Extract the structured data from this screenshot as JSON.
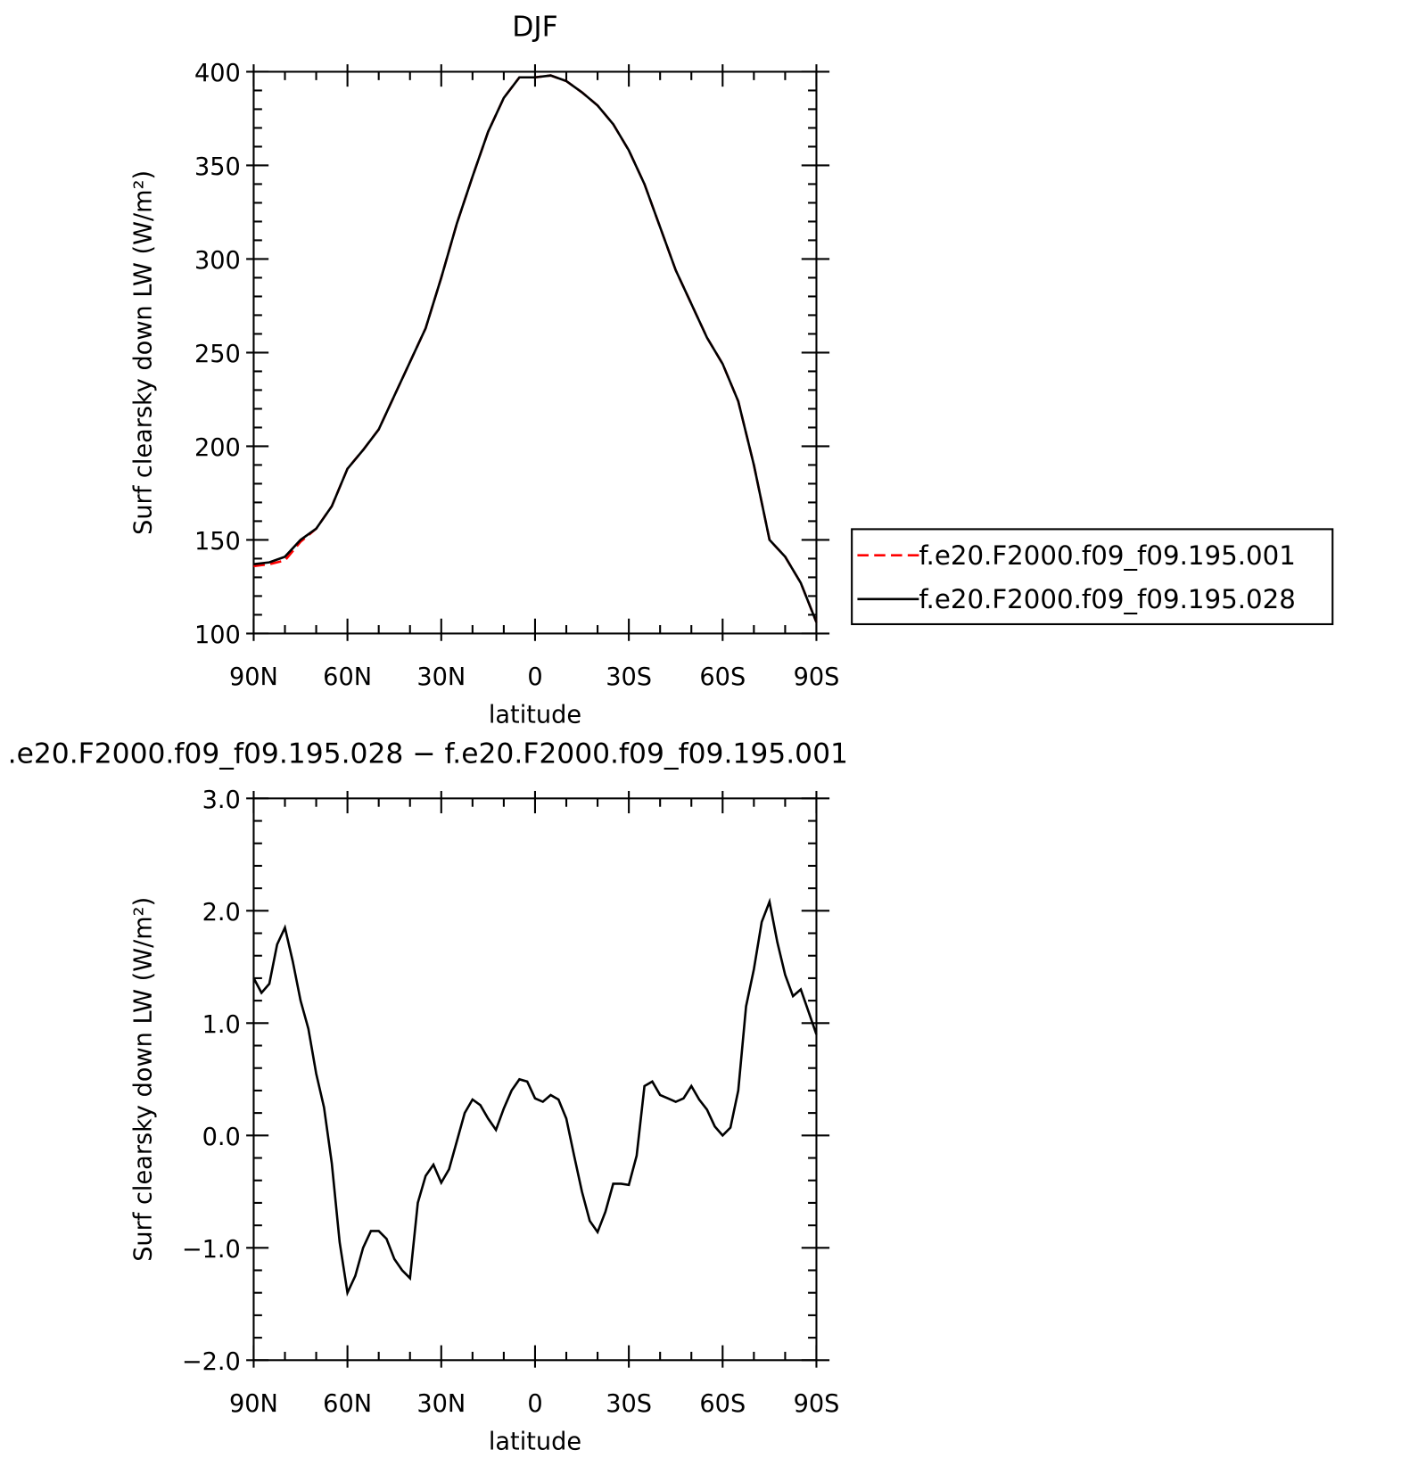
{
  "chart_data": [
    {
      "type": "line",
      "title": "DJF",
      "xlabel": "latitude",
      "ylabel": "Surf clearsky down LW (W/m²)",
      "x": [
        90,
        85,
        80,
        75,
        70,
        65,
        60,
        55,
        50,
        45,
        40,
        35,
        30,
        25,
        20,
        15,
        10,
        5,
        0,
        -5,
        -10,
        -15,
        -20,
        -25,
        -30,
        -35,
        -40,
        -45,
        -50,
        -55,
        -60,
        -65,
        -70,
        -75,
        -80,
        -85,
        -90
      ],
      "xlim": [
        90,
        -90
      ],
      "xticks": [
        {
          "value": 90,
          "label": "90N"
        },
        {
          "value": 60,
          "label": "60N"
        },
        {
          "value": 30,
          "label": "30N"
        },
        0,
        {
          "value": -30,
          "label": "30S"
        },
        {
          "value": -60,
          "label": "60S"
        },
        {
          "value": -90,
          "label": "90S"
        }
      ],
      "ylim": [
        100,
        400
      ],
      "yticks": [
        100,
        150,
        200,
        250,
        300,
        350,
        400
      ],
      "legend": "right",
      "series": [
        {
          "name": "f.e20.F2000.f09_f09.195.001",
          "color": "#ff0000",
          "dashed": true,
          "values": [
            136,
            137,
            139,
            149,
            156,
            168,
            188,
            198,
            209,
            227,
            245,
            263,
            290,
            319,
            344,
            368,
            386,
            397,
            397,
            398,
            395,
            389,
            382,
            372,
            358,
            340,
            317,
            294,
            276,
            258,
            244,
            224,
            190,
            150,
            141,
            127,
            106
          ]
        },
        {
          "name": "f.e20.F2000.f09_f09.195.028",
          "color": "#000000",
          "dashed": false,
          "values": [
            137,
            138,
            141,
            150,
            156,
            168,
            188,
            198,
            209,
            227,
            245,
            263,
            290,
            319,
            344,
            368,
            386,
            397,
            397,
            398,
            395,
            389,
            382,
            372,
            358,
            340,
            317,
            294,
            276,
            258,
            244,
            224,
            190,
            150,
            141,
            127,
            106
          ]
        }
      ]
    },
    {
      "type": "line",
      "title": ".e20.F2000.f09_f09.195.028 − f.e20.F2000.f09_f09.195.001",
      "xlabel": "latitude",
      "ylabel": "Surf clearsky down LW (W/m²)",
      "x": [
        90,
        87.5,
        85,
        82.5,
        80,
        77.5,
        75,
        72.5,
        70,
        67.5,
        65,
        62.5,
        60,
        57.5,
        55,
        52.5,
        50,
        47.5,
        45,
        42.5,
        40,
        37.5,
        35,
        32.5,
        30,
        27.5,
        25,
        22.5,
        20,
        17.5,
        15,
        12.5,
        10,
        7.5,
        5,
        2.5,
        0,
        -2.5,
        -5,
        -7.5,
        -10,
        -12.5,
        -15,
        -17.5,
        -20,
        -22.5,
        -25,
        -27.5,
        -30,
        -32.5,
        -35,
        -37.5,
        -40,
        -42.5,
        -45,
        -47.5,
        -50,
        -52.5,
        -55,
        -57.5,
        -60,
        -62.5,
        -65,
        -67.5,
        -70,
        -72.5,
        -75,
        -77.5,
        -80,
        -82.5,
        -85,
        -87.5,
        -90
      ],
      "xlim": [
        90,
        -90
      ],
      "xticks": [
        {
          "value": 90,
          "label": "90N"
        },
        {
          "value": 60,
          "label": "60N"
        },
        {
          "value": 30,
          "label": "30N"
        },
        0,
        {
          "value": -30,
          "label": "30S"
        },
        {
          "value": -60,
          "label": "60S"
        },
        {
          "value": -90,
          "label": "90S"
        }
      ],
      "ylim": [
        -2,
        3
      ],
      "yticks": [
        {
          "value": -2,
          "label": "−2.0"
        },
        {
          "value": -1,
          "label": "−1.0"
        },
        {
          "value": 0,
          "label": "0.0"
        },
        {
          "value": 1,
          "label": "1.0"
        },
        {
          "value": 2,
          "label": "2.0"
        },
        {
          "value": 3,
          "label": "3.0"
        }
      ],
      "series": [
        {
          "color": "#000000",
          "dashed": false,
          "values": [
            1.4,
            1.27,
            1.35,
            1.7,
            1.85,
            1.55,
            1.2,
            0.95,
            0.55,
            0.25,
            -0.25,
            -0.95,
            -1.4,
            -1.25,
            -1.0,
            -0.85,
            -0.85,
            -0.92,
            -1.1,
            -1.2,
            -1.27,
            -0.6,
            -0.36,
            -0.26,
            -0.42,
            -0.3,
            -0.05,
            0.2,
            0.32,
            0.27,
            0.15,
            0.05,
            0.24,
            0.4,
            0.5,
            0.48,
            0.33,
            0.3,
            0.36,
            0.32,
            0.15,
            -0.18,
            -0.5,
            -0.76,
            -0.86,
            -0.68,
            -0.43,
            -0.43,
            -0.44,
            -0.18,
            0.44,
            0.48,
            0.36,
            0.33,
            0.3,
            0.33,
            0.44,
            0.32,
            0.23,
            0.08,
            0.0,
            0.07,
            0.4,
            1.15,
            1.48,
            1.9,
            2.08,
            1.72,
            1.43,
            1.24,
            1.3,
            1.1,
            0.9
          ]
        }
      ]
    }
  ]
}
